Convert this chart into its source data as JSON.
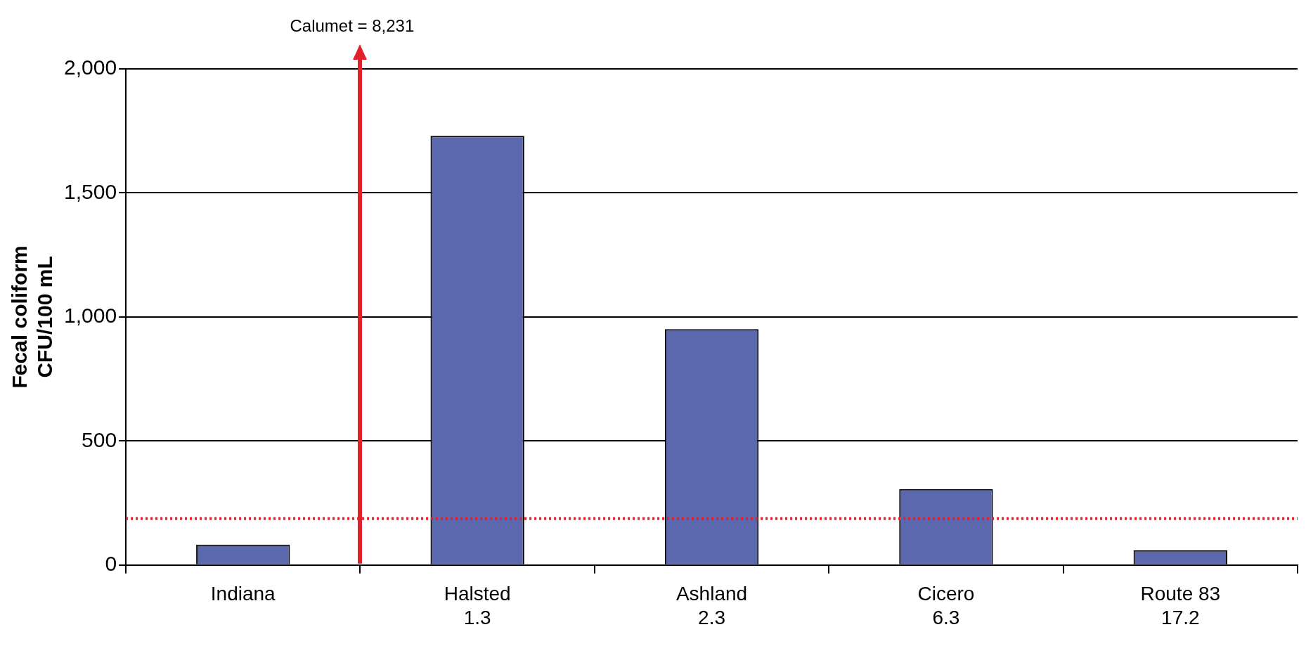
{
  "chart_data": {
    "type": "bar",
    "ylabel": "Fecal coliform\nCFU/100 mL",
    "categories": [
      "Indiana",
      "Halsted\n1.3",
      "Ashland\n2.3",
      "Cicero\n6.3",
      "Route 83\n17.2"
    ],
    "values": [
      82,
      1730,
      951,
      306,
      60
    ],
    "color": "#5b68ad",
    "ylim": [
      0,
      2000
    ],
    "yticks": [
      0,
      500,
      {
        "value": 1000,
        "label": "1,000"
      },
      {
        "value": 1500,
        "label": "1,500"
      },
      {
        "value": 2000,
        "label": "2,000"
      }
    ],
    "grid": "y",
    "legend": false,
    "ref_lines": [
      {
        "axis": "y",
        "value": 187,
        "color": "#e0202a",
        "line_style": "dotted"
      }
    ],
    "annotations": [
      "Calumet = 8,231"
    ]
  }
}
